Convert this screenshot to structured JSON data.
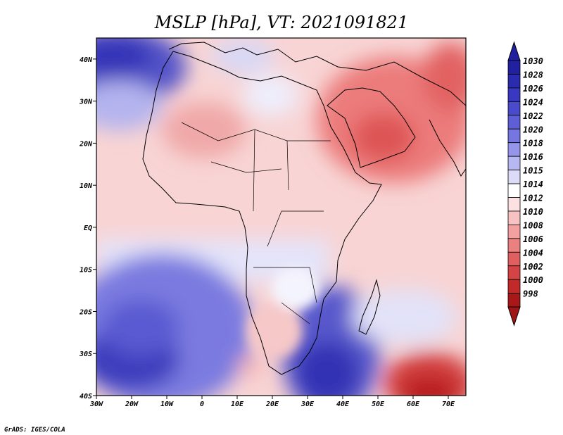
{
  "figure": {
    "title": "MSLP [hPa], VT: 2021091821",
    "credit": "GrADS: IGES/COLA"
  },
  "map": {
    "x_ticks": [
      "30W",
      "20W",
      "10W",
      "0",
      "10E",
      "20E",
      "30E",
      "40E",
      "50E",
      "60E",
      "70E"
    ],
    "y_ticks": [
      "40N",
      "30N",
      "20N",
      "10N",
      "EQ",
      "10S",
      "20S",
      "30S",
      "40S"
    ],
    "lon_range": [
      -30,
      75
    ],
    "lat_range": [
      -40,
      45
    ],
    "features": {
      "high_south_atlantic": "blue high-pressure cell",
      "high_south_indian": "blue high-pressure ridge",
      "high_azores": "blue high-pressure cell",
      "low_arabia_sahara": "red thermal low",
      "low_southern_ocean": "red low-pressure cell"
    }
  },
  "colorbar": {
    "labels": [
      "1030",
      "1028",
      "1026",
      "1024",
      "1022",
      "1020",
      "1018",
      "1016",
      "1015",
      "1014",
      "1012",
      "1010",
      "1008",
      "1006",
      "1004",
      "1002",
      "1000",
      "998"
    ],
    "colors": [
      "#2020a0",
      "#2b2bb0",
      "#3838c0",
      "#4a4acc",
      "#5e5ed6",
      "#7676e0",
      "#9595ea",
      "#b7b7f2",
      "#dcdcf8",
      "#ffffff",
      "#fde0e0",
      "#f8c2c2",
      "#f2a0a0",
      "#ea8080",
      "#e06060",
      "#d44444",
      "#c22a2a",
      "#a81818"
    ],
    "bottom_color": "#a01515"
  }
}
